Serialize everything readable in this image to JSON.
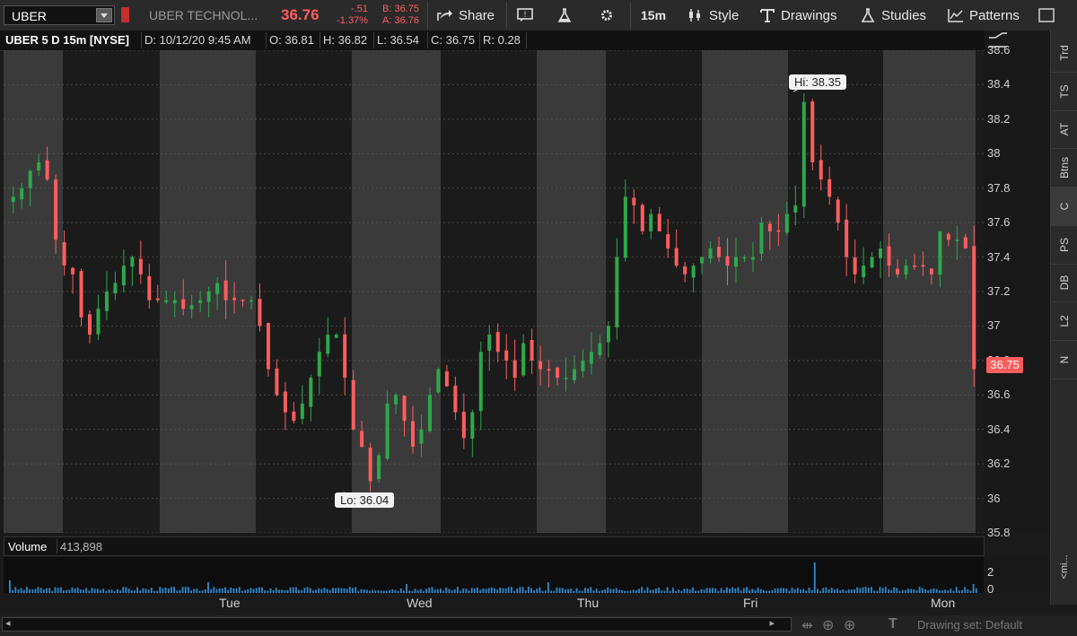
{
  "toolbar": {
    "symbol": "UBER",
    "company": "UBER TECHNOL...",
    "last_price": "36.76",
    "net_change": "-.51",
    "pct_change": "-1.37%",
    "bid": "B: 36.75",
    "ask": "A: 36.76",
    "share": "Share",
    "interval": "15m",
    "style": "Style",
    "drawings": "Drawings",
    "studies": "Studies",
    "patterns": "Patterns"
  },
  "header": {
    "title": "UBER 5 D 15m [NYSE]",
    "date": "D: 10/12/20 9:45 AM",
    "open": "O: 36.81",
    "high": "H: 36.82",
    "low": "L: 36.54",
    "close": "C: 36.75",
    "range": "R: 0.28"
  },
  "price_axis": [
    "38.6",
    "38.4",
    "38.2",
    "38",
    "37.8",
    "37.6",
    "37.4",
    "37.2",
    "37",
    "36.8",
    "36.6",
    "36.4",
    "36.2",
    "36",
    "35.8"
  ],
  "current_price_label": "36.75",
  "callouts": {
    "hi": "Hi: 38.35",
    "lo": "Lo: 36.04"
  },
  "volume": {
    "label": "Volume",
    "value": "413,898",
    "axis_2": "2",
    "axis_0": "0"
  },
  "x_axis": [
    "Tue",
    "Wed",
    "Thu",
    "Fri",
    "Mon"
  ],
  "side_tabs": [
    "Trd",
    "TS",
    "AT",
    "Btns",
    "C",
    "PS",
    "DB",
    "L2",
    "N"
  ],
  "side_collapse": "<mi...",
  "bottom": {
    "drawing_set": "Drawing set: Default"
  },
  "colors": {
    "up": "#2ea84a",
    "down": "#ff5d5d",
    "bg_dark": "#1b1b1b",
    "bg_light": "#3a3a3a",
    "accent": "#ff5d5d"
  },
  "chart_data": {
    "type": "candlestick",
    "symbol": "UBER",
    "interval": "15m",
    "ylim": [
      35.8,
      38.6
    ],
    "hi": 38.35,
    "lo": 36.04,
    "last": 36.75,
    "sessions": [
      "Mon",
      "Tue",
      "Wed",
      "Thu",
      "Fri",
      "Mon"
    ],
    "close_path": [
      37.75,
      37.8,
      37.9,
      37.95,
      37.85,
      37.5,
      37.35,
      37.3,
      37.05,
      36.95,
      37.1,
      37.2,
      37.25,
      37.35,
      37.4,
      37.3,
      37.15,
      37.15,
      37.15,
      37.15,
      37.1,
      37.12,
      37.15,
      37.2,
      37.25,
      37.15,
      37.15,
      37.15,
      37.15,
      37.0,
      36.75,
      36.6,
      36.5,
      36.45,
      36.55,
      36.7,
      36.85,
      36.95,
      36.95,
      36.7,
      36.4,
      36.3,
      36.1,
      36.25,
      36.55,
      36.6,
      36.45,
      36.3,
      36.4,
      36.6,
      36.75,
      36.65,
      36.5,
      36.35,
      36.5,
      36.85,
      36.95,
      36.85,
      36.8,
      36.7,
      36.9,
      36.8,
      36.75,
      36.75,
      36.7,
      36.7,
      36.75,
      36.8,
      36.85,
      36.9,
      37.0,
      37.4,
      37.75,
      37.7,
      37.55,
      37.65,
      37.55,
      37.45,
      37.35,
      37.3,
      37.35,
      37.4,
      37.45,
      37.4,
      37.35,
      37.4,
      37.4,
      37.4,
      37.6,
      37.55,
      37.55,
      37.65,
      37.7,
      38.3,
      37.95,
      37.85,
      37.75,
      37.6,
      37.4,
      37.3,
      37.35,
      37.4,
      37.45,
      37.35,
      37.3,
      37.35,
      37.35,
      37.35,
      37.3,
      37.55,
      37.5,
      37.5,
      37.45,
      36.75
    ],
    "volume_max": 2
  }
}
